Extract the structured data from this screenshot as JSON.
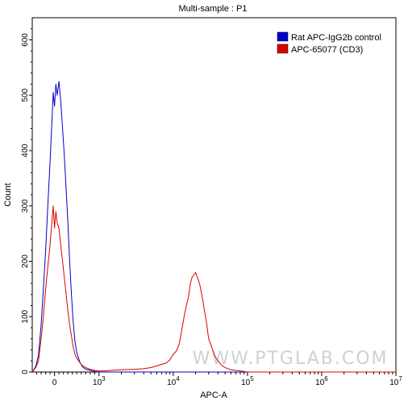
{
  "chart_data": {
    "type": "line",
    "title": "Multi-sample : P1",
    "xlabel": "APC-A",
    "ylabel": "Count",
    "xscale": "biexponential",
    "xlim": [
      -500,
      10000000
    ],
    "ylim": [
      0,
      640
    ],
    "yticks": [
      0,
      100,
      200,
      300,
      400,
      500,
      600
    ],
    "xticks": [
      {
        "value": 1000,
        "base": "10",
        "exp": "3"
      },
      {
        "value": 10000,
        "base": "10",
        "exp": "4"
      },
      {
        "value": 100000,
        "base": "10",
        "exp": "5"
      },
      {
        "value": 1000000,
        "base": "10",
        "exp": "6"
      },
      {
        "value": 10000000,
        "base": "10",
        "exp": "7"
      }
    ],
    "x0_label": "0",
    "legend": "top-right",
    "grid": false,
    "watermark": "WWW.PTGLAB.COM",
    "series": [
      {
        "name": "Rat APC-IgG2b control",
        "color": "#0000cc",
        "x": [
          -500,
          -420,
          -360,
          -300,
          -250,
          -200,
          -150,
          -100,
          -60,
          -30,
          0,
          30,
          60,
          100,
          140,
          180,
          220,
          260,
          300,
          340,
          380,
          420,
          460,
          500,
          560,
          620,
          700,
          800,
          900,
          1000,
          1200,
          1500,
          10000000
        ],
        "y": [
          0,
          10,
          30,
          85,
          150,
          220,
          300,
          380,
          450,
          505,
          480,
          520,
          500,
          525,
          490,
          440,
          390,
          330,
          270,
          200,
          140,
          90,
          55,
          35,
          20,
          10,
          5,
          3,
          1,
          0,
          0,
          0,
          0
        ]
      },
      {
        "name": "APC-65077  (CD3)",
        "color": "#dd0000",
        "x": [
          -500,
          -420,
          -360,
          -300,
          -250,
          -200,
          -150,
          -100,
          -60,
          -30,
          0,
          30,
          60,
          100,
          140,
          180,
          220,
          260,
          300,
          340,
          380,
          420,
          460,
          500,
          560,
          620,
          700,
          800,
          900,
          1000,
          1200,
          1500,
          2000,
          3000,
          4000,
          5000,
          6000,
          7000,
          8000,
          9000,
          10000,
          11000,
          12000,
          13000,
          14000,
          15000,
          16000,
          17000,
          18000,
          19000,
          20000,
          21000,
          22000,
          23000,
          24000,
          25000,
          26000,
          28000,
          30000,
          33000,
          36000,
          40000,
          45000,
          50000,
          60000,
          80000,
          100000,
          10000000
        ],
        "y": [
          0,
          8,
          20,
          60,
          100,
          150,
          190,
          230,
          270,
          300,
          260,
          290,
          270,
          260,
          230,
          200,
          170,
          140,
          110,
          85,
          65,
          45,
          32,
          25,
          18,
          12,
          8,
          5,
          3,
          2,
          2,
          3,
          4,
          5,
          6,
          8,
          11,
          14,
          16,
          22,
          32,
          38,
          50,
          75,
          100,
          120,
          135,
          160,
          172,
          175,
          180,
          172,
          165,
          155,
          142,
          130,
          115,
          90,
          60,
          45,
          30,
          20,
          12,
          8,
          4,
          2,
          0,
          0
        ]
      }
    ]
  }
}
